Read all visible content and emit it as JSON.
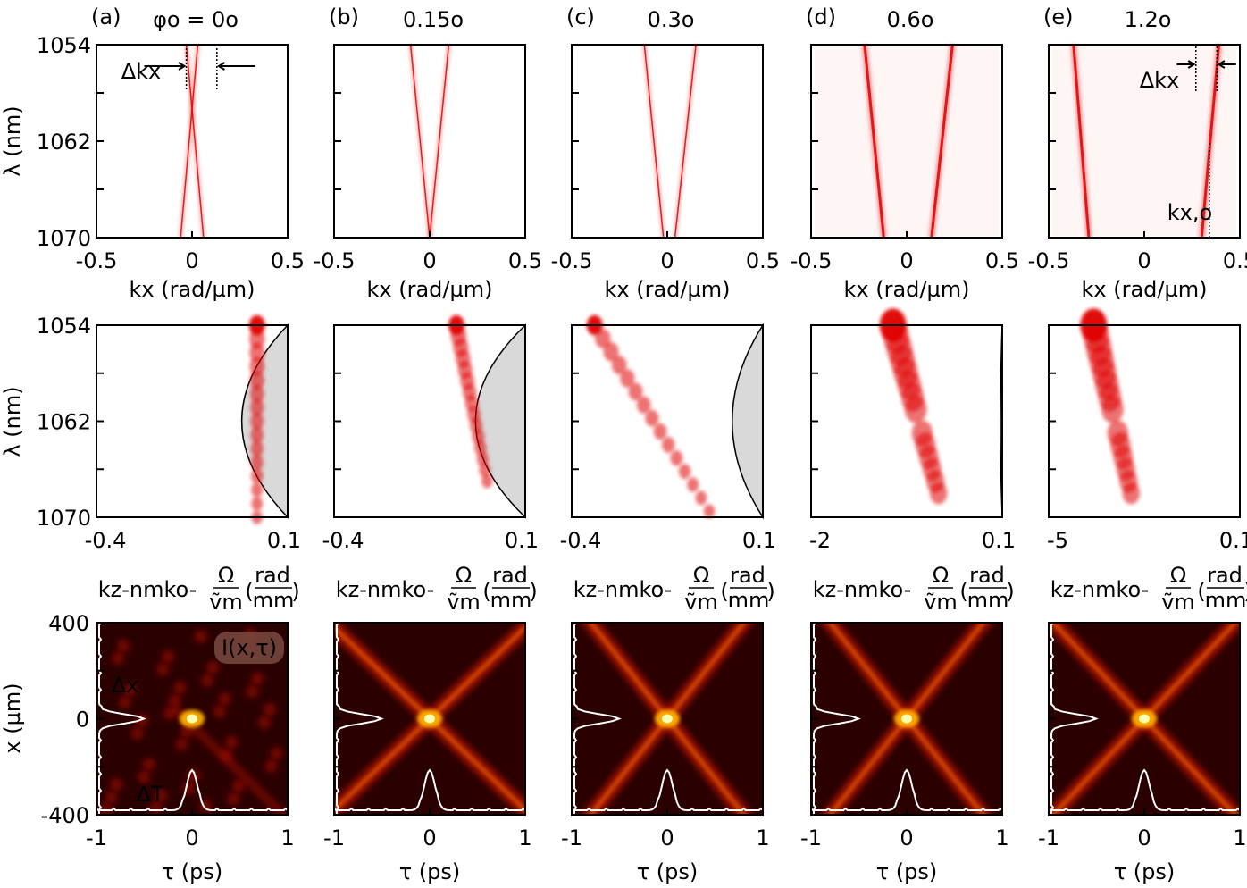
{
  "chart_data": [
    {
      "type": "heatmap",
      "row": "spatio-temporal spectrum",
      "colors": {
        "map": "#e00000",
        "background": "#ffffff"
      },
      "panels": [
        {
          "panel_label": "(a)",
          "angle_label": "φo = 0o",
          "angle_deg": 0,
          "xlim": [
            -0.5,
            0.5
          ],
          "ylim": [
            1054,
            1070
          ],
          "xticks": [
            "-0.5",
            "0",
            "0.5"
          ],
          "yticks": [
            "1054",
            "1062",
            "1070"
          ],
          "annotation": "Δkx",
          "kx_lines": [
            {
              "kx_top": -0.03,
              "kx_bottom": 0.06
            },
            {
              "kx_top": 0.03,
              "kx_bottom": -0.06
            },
            {
              "kx_top": 0.0,
              "kx_bottom": 0.0
            }
          ]
        },
        {
          "panel_label": "(b)",
          "angle_label": "0.15o",
          "angle_deg": 0.15,
          "xlim": [
            -0.5,
            0.5
          ],
          "ylim": [
            1054,
            1070
          ],
          "xticks": [
            "-0.5",
            "0",
            "0.5"
          ],
          "yticks": [
            "",
            "",
            ""
          ],
          "annotation": "",
          "kx_lines": [
            {
              "kx_top": -0.1,
              "kx_bottom": 0.0
            },
            {
              "kx_top": 0.1,
              "kx_bottom": 0.0
            },
            {
              "kx_top": 0.0,
              "kx_bottom": 0.0
            }
          ]
        },
        {
          "panel_label": "(c)",
          "angle_label": "0.3o",
          "angle_deg": 0.3,
          "xlim": [
            -0.5,
            0.5
          ],
          "ylim": [
            1054,
            1070
          ],
          "xticks": [
            "-0.5",
            "0",
            "0.5"
          ],
          "yticks": [
            "",
            "",
            ""
          ],
          "annotation": "",
          "kx_lines": [
            {
              "kx_top": -0.12,
              "kx_bottom": -0.02
            },
            {
              "kx_top": 0.15,
              "kx_bottom": 0.04
            },
            {
              "kx_top": 0.0,
              "kx_bottom": 0.0
            }
          ]
        },
        {
          "panel_label": "(d)",
          "angle_label": "0.6o",
          "angle_deg": 0.6,
          "xlim": [
            -0.5,
            0.5
          ],
          "ylim": [
            1054,
            1070
          ],
          "xticks": [
            "-0.5",
            "0",
            "0.5"
          ],
          "yticks": [
            "",
            "",
            ""
          ],
          "annotation": "",
          "kx_lines": [
            {
              "kx_top": -0.22,
              "kx_bottom": -0.12
            },
            {
              "kx_top": 0.24,
              "kx_bottom": 0.13
            },
            {
              "kx_top": 0.02,
              "kx_bottom": 0.02
            }
          ]
        },
        {
          "panel_label": "(e)",
          "angle_label": "1.2o",
          "angle_deg": 1.2,
          "xlim": [
            -0.5,
            0.5
          ],
          "ylim": [
            1054,
            1070
          ],
          "xticks": [
            "-0.5",
            "0",
            "0.5"
          ],
          "yticks": [
            "",
            "",
            ""
          ],
          "annotation": "Δkx",
          "annotation2": "kx,o",
          "kx_lines": [
            {
              "kx_top": -0.37,
              "kx_bottom": -0.29
            },
            {
              "kx_top": 0.39,
              "kx_bottom": 0.3
            },
            {
              "kx_top": 0.02,
              "kx_bottom": 0.02
            }
          ]
        }
      ],
      "xlabel": "kx (rad/µm)",
      "ylabel": "λ (nm)"
    },
    {
      "type": "heatmap",
      "row": "kz spectrum",
      "colors": {
        "map": "#e00000",
        "shade": "#d9d9d9"
      },
      "panels": [
        {
          "xlim": [
            -0.4,
            0.1
          ],
          "xticks": [
            "-0.4",
            "0.1"
          ],
          "yticks": [
            "1054",
            "1062",
            "1070"
          ],
          "trace": [
            {
              "kz": 0.02,
              "lam": 1054
            },
            {
              "kz": 0.02,
              "lam": 1070
            }
          ],
          "curve_kz_min": -0.02,
          "curve_kz_max": 0.1
        },
        {
          "xlim": [
            -0.4,
            0.1
          ],
          "xticks": [
            "-0.4",
            "0.1"
          ],
          "yticks": [
            "",
            "",
            ""
          ],
          "trace": [
            {
              "kz": -0.08,
              "lam": 1054
            },
            {
              "kz": 0.0,
              "lam": 1067
            }
          ],
          "curve_kz_min": -0.03,
          "curve_kz_max": 0.1
        },
        {
          "xlim": [
            -0.4,
            0.1
          ],
          "xticks": [
            "-0.4",
            "0.1"
          ],
          "yticks": [
            "",
            "",
            ""
          ],
          "trace": [
            {
              "kz": -0.34,
              "lam": 1054
            },
            {
              "kz": -0.04,
              "lam": 1069.5
            }
          ],
          "curve_kz_min": 0.02,
          "curve_kz_max": 0.1
        },
        {
          "xlim": [
            -2,
            0.1
          ],
          "xticks": [
            "-2",
            "0.1"
          ],
          "yticks": [
            "",
            "",
            ""
          ],
          "trace": [
            {
              "kz": -1.1,
              "lam": 1054
            },
            {
              "kz": -0.6,
              "lam": 1068
            }
          ],
          "curve_kz_min": 0.08,
          "curve_kz_max": 0.1
        },
        {
          "xlim": [
            -5,
            0.1
          ],
          "xticks": [
            "-5",
            "0.1"
          ],
          "yticks": [
            "",
            "",
            ""
          ],
          "trace": [
            {
              "kz": -3.8,
              "lam": 1054
            },
            {
              "kz": -2.8,
              "lam": 1068
            }
          ],
          "curve_kz_min": 0.1,
          "curve_kz_max": 0.1
        }
      ],
      "xlabel": "kz-nmko-Ω/ṽm (rad/mm)",
      "ylabel": "λ (nm)"
    },
    {
      "type": "heatmap",
      "row": "intensity I(x,τ)",
      "colors": {
        "map": "#ff2200",
        "background": "#2a0000",
        "trace": "#ffffff"
      },
      "panels": [
        {
          "xlim": [
            -1,
            1
          ],
          "ylim": [
            -400,
            400
          ],
          "xticks": [
            "-1",
            "0",
            "1"
          ],
          "yticks": [
            "400",
            "0",
            "-400"
          ],
          "inset": "I(x,τ)",
          "annotations": [
            "Δx",
            "ΔT"
          ],
          "x_slope": 0.0
        },
        {
          "xlim": [
            -1,
            1
          ],
          "ylim": [
            -400,
            400
          ],
          "xticks": [
            "-1",
            "0",
            "1"
          ],
          "yticks": [
            "",
            "",
            ""
          ],
          "inset": "",
          "annotations": [],
          "x_slope": 380
        },
        {
          "xlim": [
            -1,
            1
          ],
          "ylim": [
            -400,
            400
          ],
          "xticks": [
            "-1",
            "0",
            "1"
          ],
          "yticks": [
            "",
            "",
            ""
          ],
          "inset": "",
          "annotations": [],
          "x_slope": 500
        },
        {
          "xlim": [
            -1,
            1
          ],
          "ylim": [
            -400,
            400
          ],
          "xticks": [
            "-1",
            "0",
            "1"
          ],
          "yticks": [
            "",
            "",
            ""
          ],
          "inset": "",
          "annotations": [],
          "x_slope": 500
        },
        {
          "xlim": [
            -1,
            1
          ],
          "ylim": [
            -400,
            400
          ],
          "xticks": [
            "-1",
            "0",
            "1"
          ],
          "yticks": [
            "",
            "",
            ""
          ],
          "inset": "",
          "annotations": [],
          "x_slope": 420
        }
      ],
      "xlabel": "τ (ps)",
      "ylabel": "x (µm)"
    }
  ]
}
